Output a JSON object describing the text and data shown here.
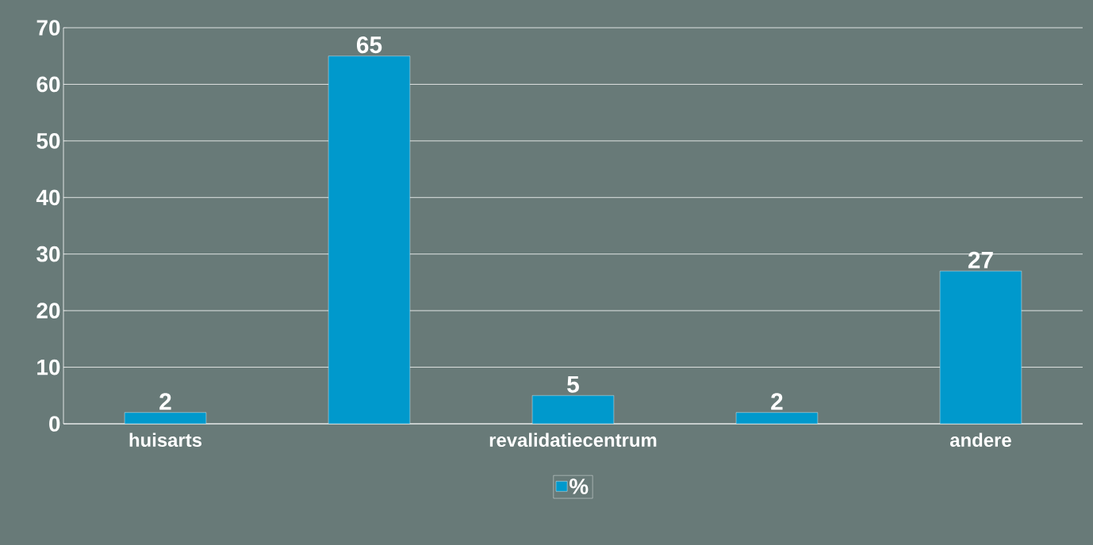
{
  "chart_data": {
    "type": "bar",
    "categories": [
      "huisarts",
      null,
      "revalidatiecentrum",
      null,
      "andere"
    ],
    "series": [
      {
        "name": "%",
        "color": "#0099cc",
        "values": [
          2,
          65,
          5,
          2,
          27
        ]
      }
    ],
    "ylim": [
      0,
      70
    ],
    "yticks": [
      0,
      10,
      20,
      30,
      40,
      50,
      60,
      70
    ],
    "grid": "y",
    "legend": "bottom",
    "data_labels": true
  }
}
